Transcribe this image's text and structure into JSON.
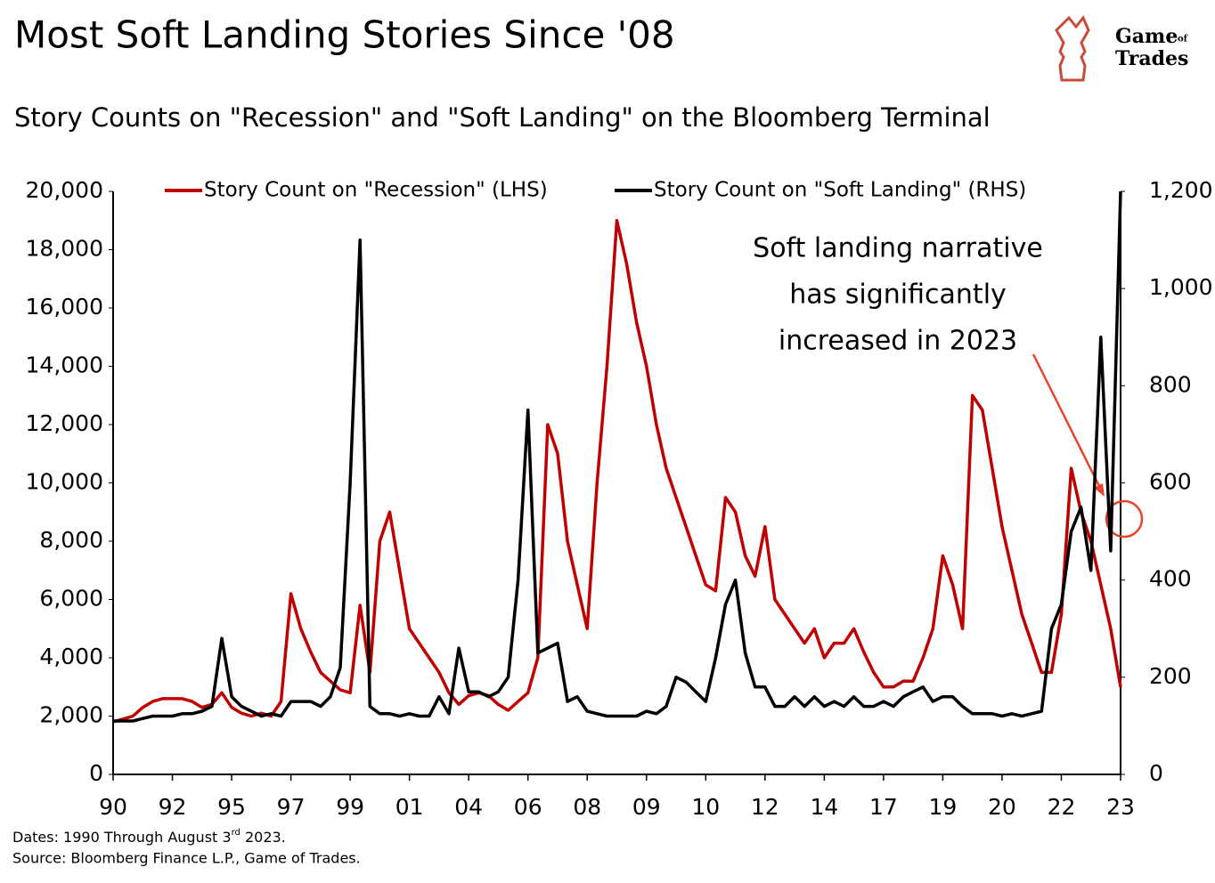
{
  "chart_data": {
    "type": "line",
    "title": "Most Soft Landing Stories Since '08",
    "subtitle": "Story Counts on \"Recession\" and \"Soft Landing\" on the Bloomberg Terminal",
    "annotation": [
      "Soft landing narrative",
      "has significantly",
      "increased in 2023"
    ],
    "footnote": [
      "Dates: 1990 Through August 3",
      "rd",
      " 2023."
    ],
    "source": "Source: Bloomberg Finance L.P., Game of Trades.",
    "brand": [
      "Game",
      "of",
      "Trades"
    ],
    "categories": [
      "90",
      null,
      null,
      null,
      null,
      null,
      "92",
      null,
      null,
      null,
      null,
      null,
      "95",
      null,
      null,
      null,
      null,
      null,
      "97",
      null,
      null,
      null,
      null,
      null,
      "99",
      null,
      null,
      null,
      null,
      null,
      "01",
      null,
      null,
      null,
      null,
      null,
      "04",
      null,
      null,
      null,
      null,
      null,
      "06",
      null,
      null,
      null,
      null,
      null,
      "08",
      null,
      null,
      null,
      null,
      null,
      "09",
      null,
      null,
      null,
      null,
      null,
      "10",
      null,
      null,
      null,
      null,
      null,
      "12",
      null,
      null,
      null,
      null,
      null,
      "14",
      null,
      null,
      null,
      null,
      null,
      "17",
      null,
      null,
      null,
      null,
      null,
      "19",
      null,
      null,
      null,
      null,
      null,
      "20",
      null,
      null,
      null,
      null,
      null,
      "22",
      null,
      null,
      null,
      null,
      null,
      "23"
    ],
    "series": [
      {
        "name": "Story Count on \"Recession\" (LHS)",
        "color": "#c00000",
        "axis": "y",
        "values": [
          1800,
          1900,
          2000,
          2300,
          2500,
          2600,
          2600,
          2600,
          2500,
          2300,
          2400,
          2800,
          2300,
          2100,
          2000,
          2100,
          2000,
          2500,
          6200,
          5000,
          4200,
          3500,
          3200,
          2900,
          2800,
          5800,
          3500,
          8000,
          9000,
          7000,
          5000,
          4500,
          4000,
          3500,
          2800,
          2400,
          2700,
          2800,
          2700,
          2400,
          2200,
          2500,
          2800,
          4000,
          12000,
          11000,
          8000,
          6500,
          5000,
          10000,
          14000,
          19000,
          17500,
          15500,
          14000,
          12000,
          10500,
          9500,
          8500,
          7500,
          6500,
          6300,
          9500,
          9000,
          7500,
          6800,
          8500,
          6000,
          5500,
          5000,
          4500,
          5000,
          4000,
          4500,
          4500,
          5000,
          4200,
          3500,
          3000,
          3000,
          3200,
          3200,
          4000,
          5000,
          7500,
          6500,
          5000,
          13000,
          12500,
          10500,
          8500,
          7000,
          5500,
          4500,
          3500,
          3500,
          5500,
          10500,
          9000,
          8000,
          6500,
          5000,
          3000
        ]
      },
      {
        "name": "Story Count on \"Soft Landing\" (RHS)",
        "color": "#000000",
        "axis": "y2",
        "values": [
          110,
          110,
          110,
          115,
          120,
          120,
          120,
          125,
          125,
          130,
          140,
          280,
          160,
          140,
          130,
          120,
          125,
          120,
          150,
          150,
          150,
          140,
          160,
          220,
          600,
          1100,
          140,
          125,
          125,
          120,
          125,
          120,
          120,
          160,
          125,
          260,
          170,
          170,
          160,
          170,
          200,
          400,
          750,
          250,
          260,
          270,
          150,
          160,
          130,
          125,
          120,
          120,
          120,
          120,
          130,
          125,
          140,
          200,
          190,
          170,
          150,
          240,
          350,
          400,
          250,
          180,
          180,
          140,
          140,
          160,
          140,
          160,
          140,
          150,
          140,
          160,
          140,
          140,
          150,
          140,
          160,
          170,
          180,
          150,
          160,
          160,
          140,
          125,
          125,
          125,
          120,
          125,
          120,
          125,
          130,
          300,
          350,
          500,
          550,
          420,
          900,
          460,
          1200
        ]
      }
    ],
    "ylim": [
      0,
      20000
    ],
    "yticks": [
      0,
      {
        "value": 2000,
        "label": "2,000"
      },
      {
        "value": 4000,
        "label": "4,000"
      },
      {
        "value": 6000,
        "label": "6,000"
      },
      {
        "value": 8000,
        "label": "8,000"
      },
      {
        "value": 10000,
        "label": "10,000"
      },
      {
        "value": 12000,
        "label": "12,000"
      },
      {
        "value": 14000,
        "label": "14,000"
      },
      {
        "value": 16000,
        "label": "16,000"
      },
      {
        "value": 18000,
        "label": "18,000"
      },
      {
        "value": 20000,
        "label": "20,000"
      }
    ],
    "y2lim": [
      0,
      1200
    ],
    "y2ticks": [
      0,
      200,
      400,
      600,
      800,
      {
        "value": 1000,
        "label": "1,000"
      },
      {
        "value": 1200,
        "label": "1,200"
      }
    ],
    "grid": false
  }
}
